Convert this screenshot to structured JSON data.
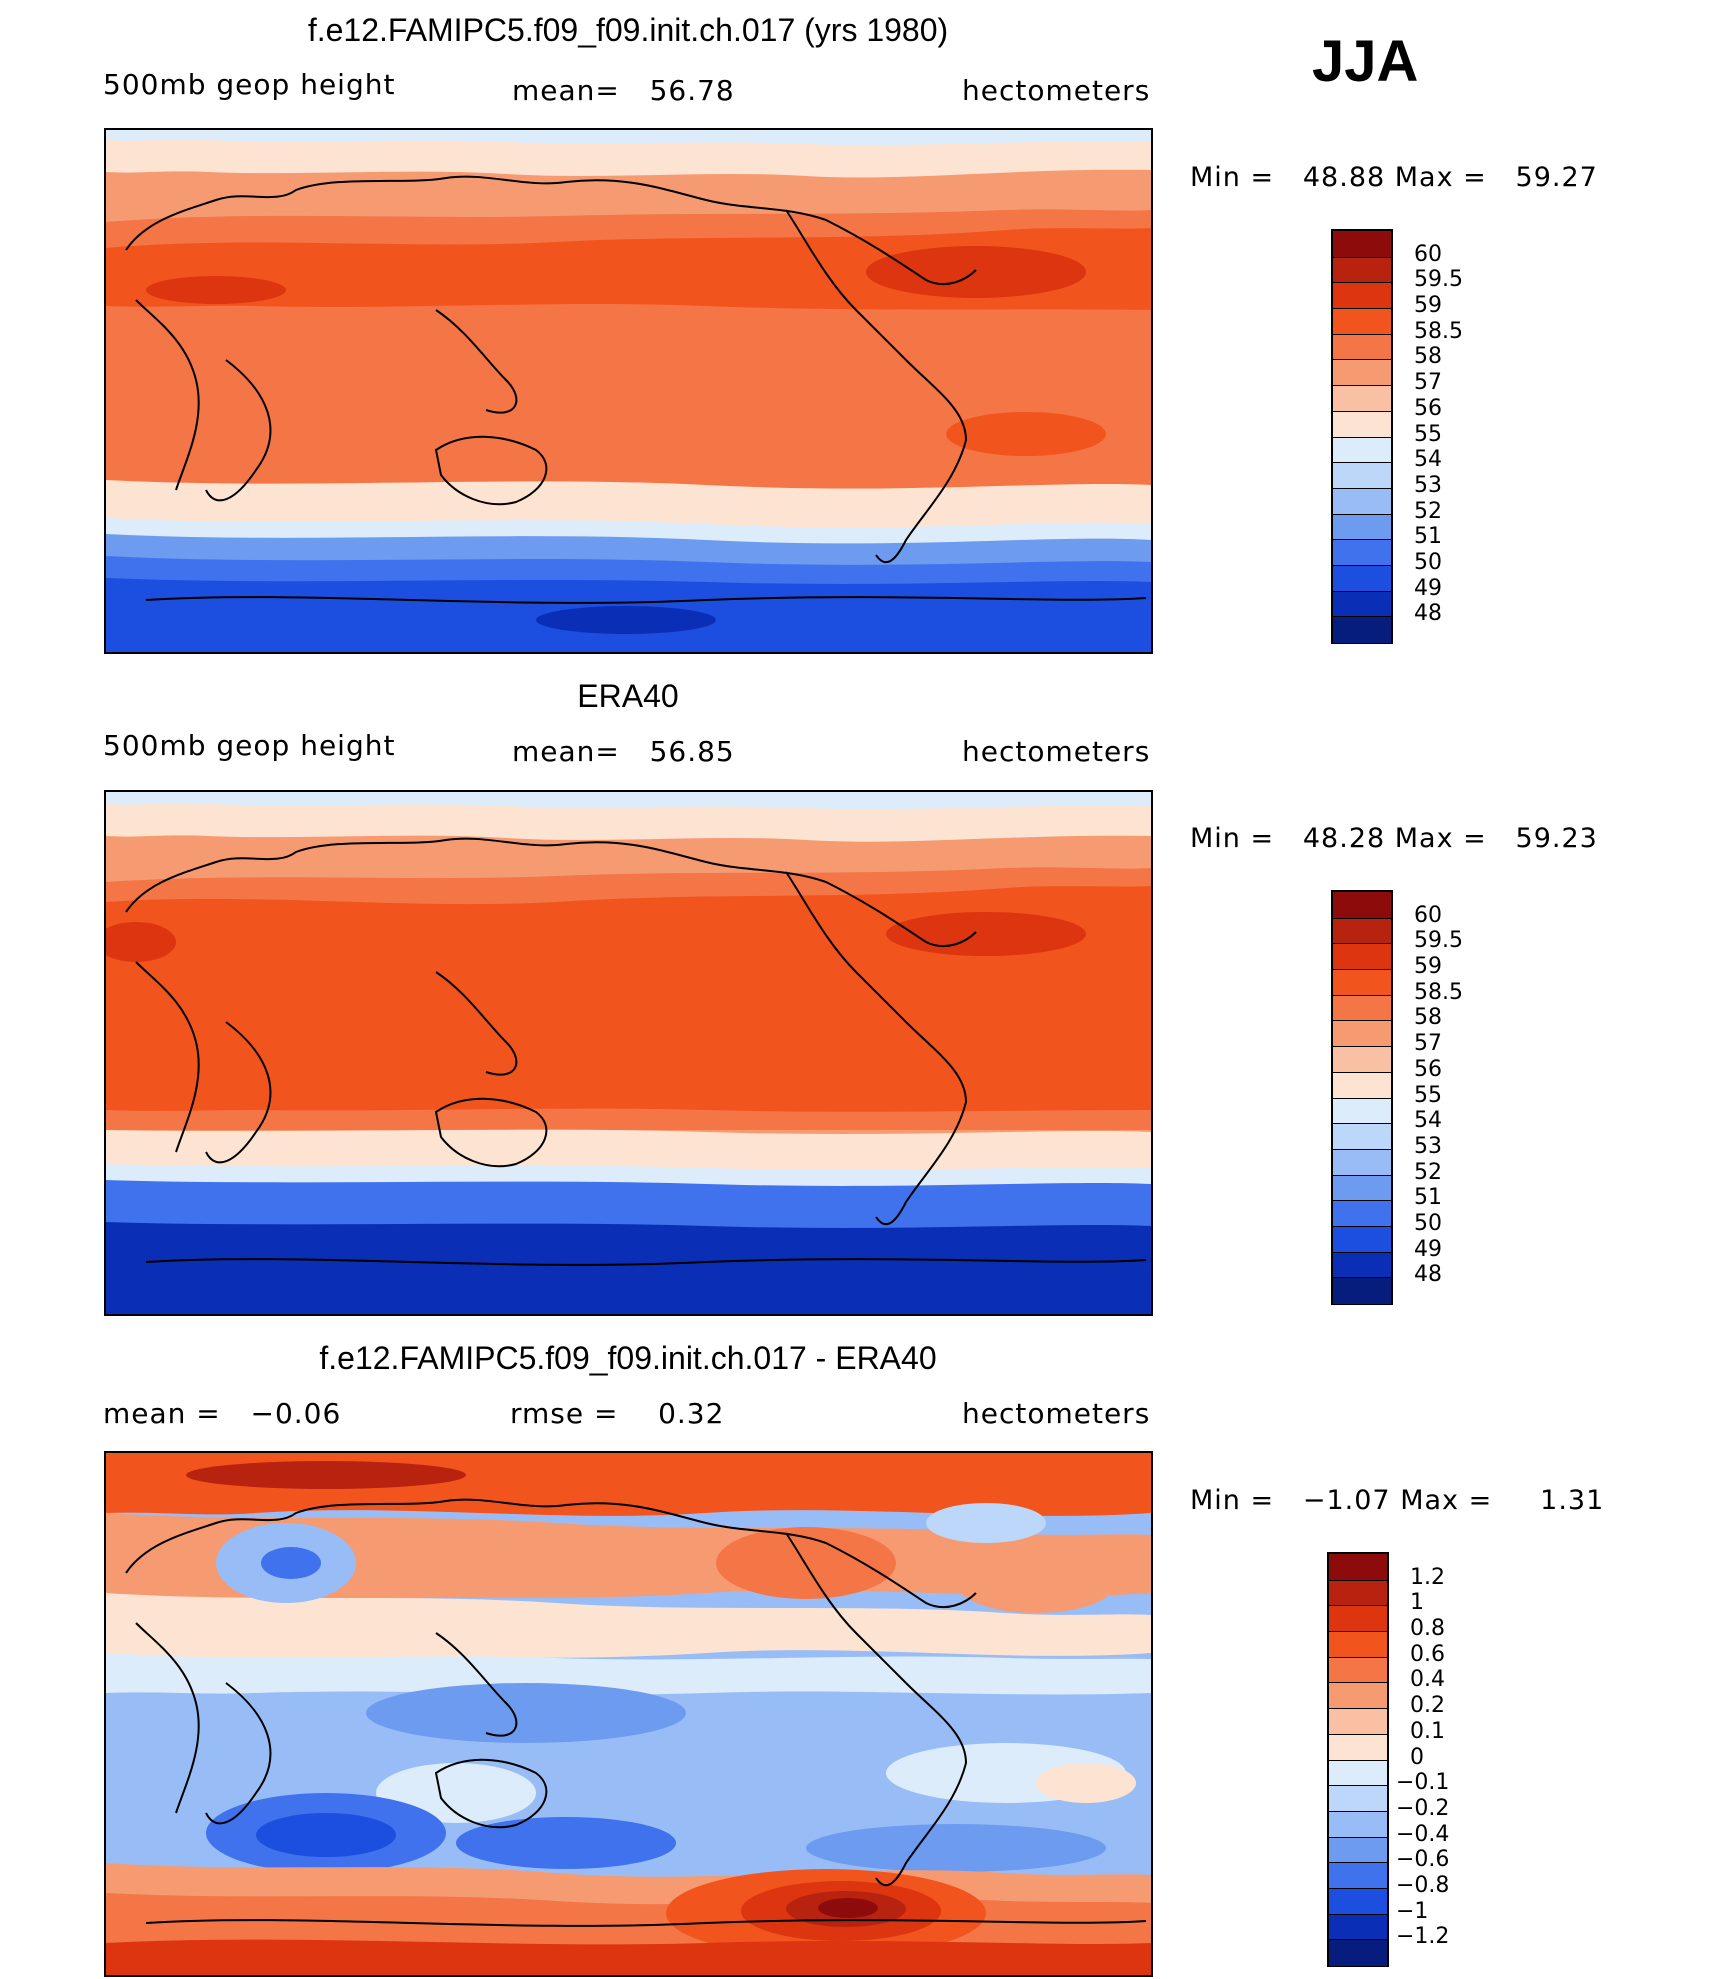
{
  "season": "JJA",
  "panels": [
    {
      "title": "f.e12.FAMIPC5.f09_f09.init.ch.017 (yrs 1980)",
      "left_label": "500mb geop height",
      "mid_label": "mean=",
      "mid_value": "56.78",
      "right_label": "hectometers",
      "min_label": "Min =",
      "min_value": "48.88",
      "max_label": "Max =",
      "max_value": "59.27",
      "colorbar": {
        "ticks": [
          "60",
          "59.5",
          "59",
          "58.5",
          "58",
          "57",
          "56",
          "55",
          "54",
          "53",
          "52",
          "51",
          "50",
          "49",
          "48"
        ],
        "colors": [
          "#8e0b0b",
          "#b8230f",
          "#dc3510",
          "#f2541d",
          "#f47545",
          "#f69a72",
          "#f9c0a4",
          "#fde3d2",
          "#dcecfb",
          "#bdd7fa",
          "#98bdf6",
          "#6d9bf0",
          "#3f72ec",
          "#1c4fe0",
          "#0a2eb6",
          "#071d7e"
        ],
        "fill_colors": {
          "polar": "#1c4fe0",
          "subpolar": "#6d9bf0",
          "midlat": "#fde3d2",
          "subtrop": "#f47545",
          "tropic": "#f2541d",
          "max": "#dc3510"
        }
      }
    },
    {
      "title": "ERA40",
      "left_label": "500mb geop height",
      "mid_label": "mean=",
      "mid_value": "56.85",
      "right_label": "hectometers",
      "min_label": "Min =",
      "min_value": "48.28",
      "max_label": "Max =",
      "max_value": "59.23",
      "colorbar": {
        "ticks": [
          "60",
          "59.5",
          "59",
          "58.5",
          "58",
          "57",
          "56",
          "55",
          "54",
          "53",
          "52",
          "51",
          "50",
          "49",
          "48"
        ],
        "colors": [
          "#8e0b0b",
          "#b8230f",
          "#dc3510",
          "#f2541d",
          "#f47545",
          "#f69a72",
          "#f9c0a4",
          "#fde3d2",
          "#dcecfb",
          "#bdd7fa",
          "#98bdf6",
          "#6d9bf0",
          "#3f72ec",
          "#1c4fe0",
          "#0a2eb6",
          "#071d7e"
        ],
        "fill_colors": {
          "polar": "#0a2eb6",
          "subpolar": "#3f72ec",
          "midlat": "#fde3d2",
          "subtrop": "#f47545",
          "tropic": "#f2541d",
          "max": "#dc3510"
        }
      }
    },
    {
      "title": "f.e12.FAMIPC5.f09_f09.init.ch.017 - ERA40",
      "left_label": "mean =",
      "left_value": "−0.06",
      "mid_label": "rmse =",
      "mid_value": "0.32",
      "right_label": "hectometers",
      "min_label": "Min =",
      "min_value": "−1.07",
      "max_label": "Max =",
      "max_value": "1.31",
      "colorbar": {
        "ticks": [
          "1.2",
          "1",
          "0.8",
          "0.6",
          "0.4",
          "0.2",
          "0.1",
          "0",
          "−0.1",
          "−0.2",
          "−0.4",
          "−0.6",
          "−0.8",
          "−1",
          "−1.2"
        ],
        "colors": [
          "#8e0b0b",
          "#b8230f",
          "#dc3510",
          "#f2541d",
          "#f47545",
          "#f69a72",
          "#f9c0a4",
          "#fde3d2",
          "#dcecfb",
          "#bdd7fa",
          "#98bdf6",
          "#6d9bf0",
          "#3f72ec",
          "#1c4fe0",
          "#0a2eb6",
          "#071d7e"
        ]
      }
    }
  ]
}
